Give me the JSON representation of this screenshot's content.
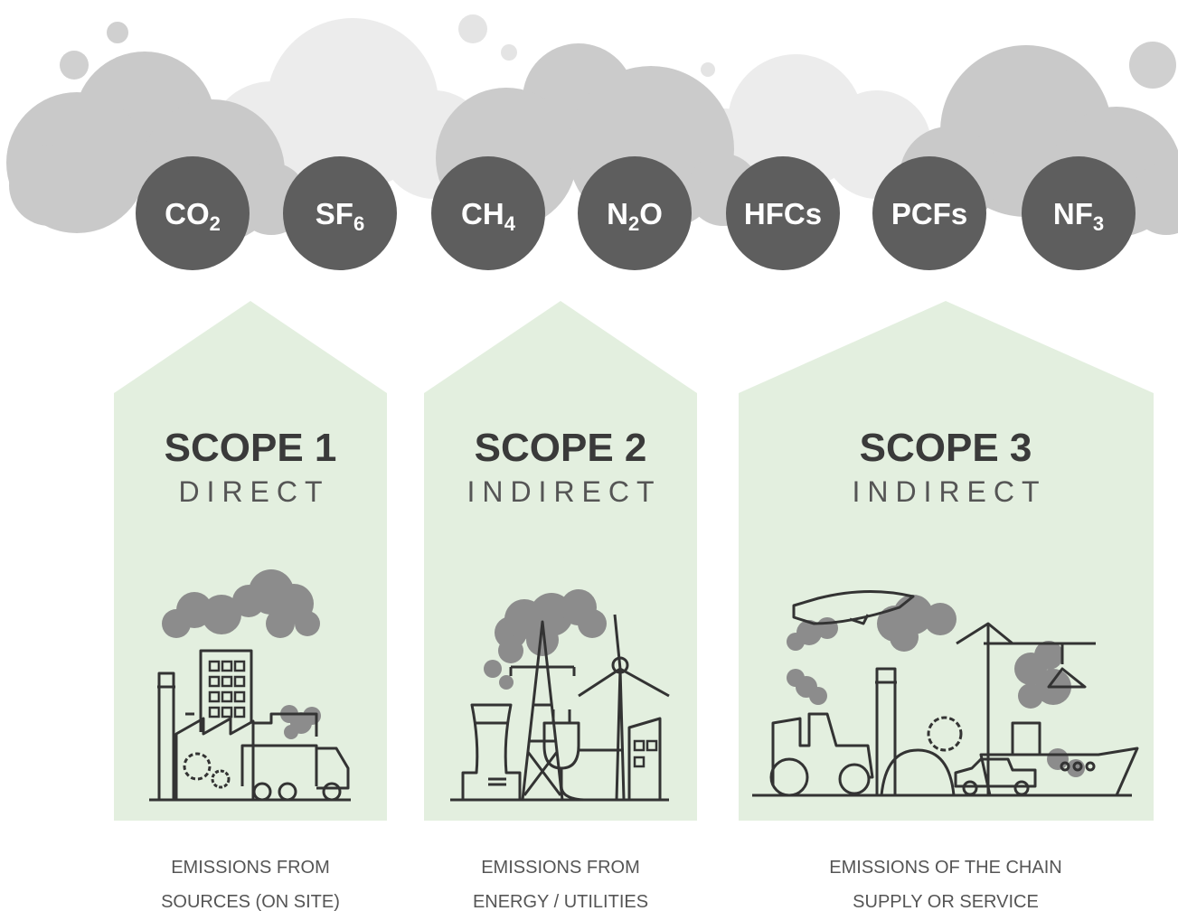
{
  "gases": [
    {
      "base": "CO",
      "sub": "2"
    },
    {
      "base": "SF",
      "sub": "6"
    },
    {
      "base": "CH",
      "sub": "4"
    },
    {
      "base": "N",
      "sub": "2",
      "tail": "O"
    },
    {
      "base": "HFCs"
    },
    {
      "base": "PCFs"
    },
    {
      "base": "NF",
      "sub": "3"
    }
  ],
  "scopes": [
    {
      "title": "SCOPE 1",
      "subtitle": "DIRECT",
      "description": [
        "EMISSIONS FROM",
        "SOURCES (ON SITE)"
      ]
    },
    {
      "title": "SCOPE 2",
      "subtitle": "INDIRECT",
      "description": [
        "EMISSIONS FROM",
        "ENERGY / UTILITIES"
      ]
    },
    {
      "title": "SCOPE 3",
      "subtitle": "INDIRECT",
      "description": [
        "EMISSIONS OF THE CHAIN",
        "SUPPLY OR SERVICE"
      ]
    }
  ]
}
